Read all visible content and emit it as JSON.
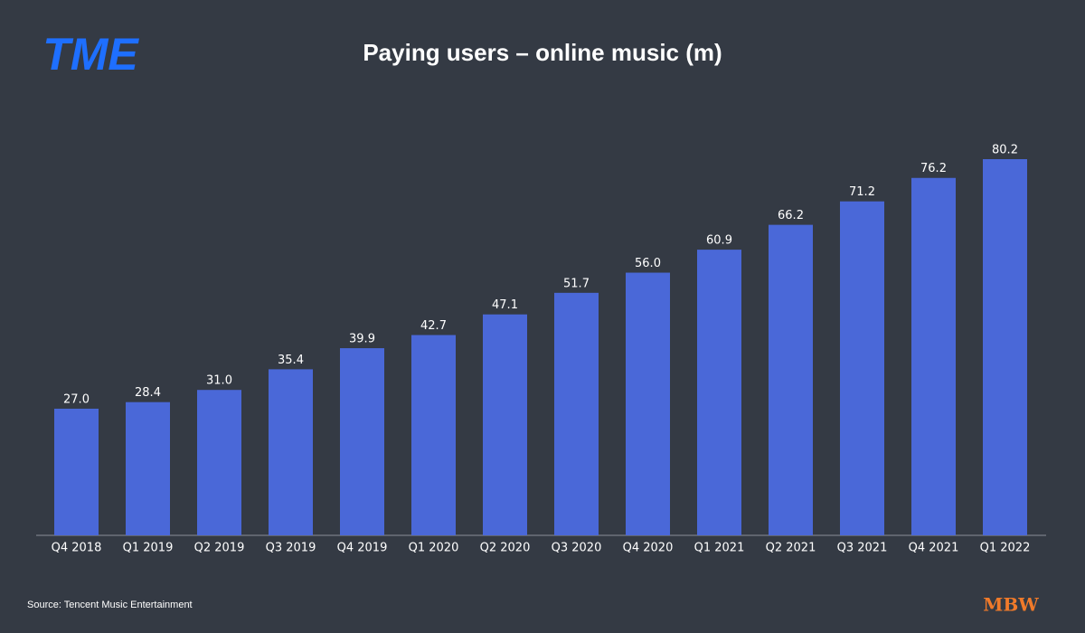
{
  "chart_data": {
    "type": "bar",
    "title": "Paying users – online music (m)",
    "categories": [
      "Q4 2018",
      "Q1 2019",
      "Q2 2019",
      "Q3 2019",
      "Q4 2019",
      "Q1 2020",
      "Q2 2020",
      "Q3 2020",
      "Q4 2020",
      "Q1 2021",
      "Q2 2021",
      "Q3 2021",
      "Q4 2021",
      "Q1 2022"
    ],
    "values": [
      27.0,
      28.4,
      31.0,
      35.4,
      39.9,
      42.7,
      47.1,
      51.7,
      56.0,
      60.9,
      66.2,
      71.2,
      76.2,
      80.2
    ],
    "value_labels": [
      "27.0",
      "28.4",
      "31.0",
      "35.4",
      "39.9",
      "42.7",
      "47.1",
      "51.7",
      "56.0",
      "60.9",
      "66.2",
      "71.2",
      "76.2",
      "80.2"
    ],
    "color": "#4a68d8",
    "source": "Source: Tencent Music Entertainment",
    "logo": "TME",
    "brand": "MBW"
  }
}
